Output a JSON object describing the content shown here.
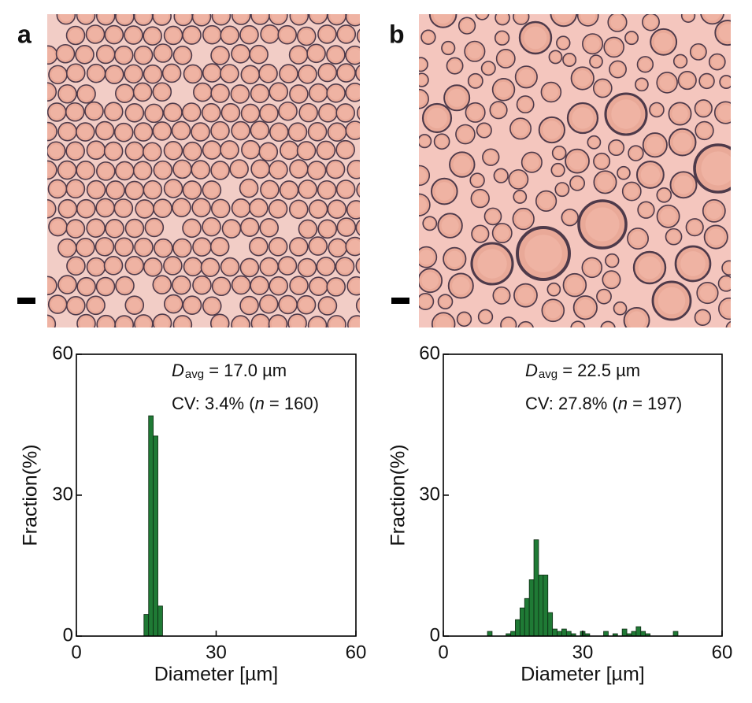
{
  "panel_labels": [
    "a",
    "b"
  ],
  "chart_data": [
    {
      "type": "histogram",
      "bins": [
        14.5,
        15.5,
        16.5,
        17.5,
        18.5
      ],
      "values": [
        4.6,
        46.9,
        42.6,
        6.4
      ],
      "color": "#1f7a35",
      "xlabel": "Diameter [µm]",
      "ylabel": "Fraction(%)",
      "xlim": [
        0,
        60
      ],
      "ylim": [
        0,
        60
      ],
      "xticks": [
        0,
        30,
        60
      ],
      "yticks": [
        0,
        30,
        60
      ],
      "annotations": [
        [
          {
            "text": "D",
            "style": "italic"
          },
          {
            "text": "avg",
            "style": "sub"
          },
          {
            "text": " = 17.0 µm"
          }
        ],
        [
          {
            "text": "CV: 3.4% ("
          },
          {
            "text": "n",
            "style": "italic"
          },
          {
            "text": " = 160)"
          }
        ]
      ]
    },
    {
      "type": "histogram",
      "bins": [
        9.5,
        10.5,
        11.5,
        12.5,
        13.5,
        14.5,
        15.5,
        16.5,
        17.5,
        18.5,
        19.5,
        20.5,
        21.5,
        22.5,
        23.5,
        24.5,
        25.5,
        26.5,
        27.5,
        28.5,
        29.5,
        30.5,
        31.5,
        32.5,
        33.5,
        34.5,
        35.5,
        36.5,
        37.5,
        38.5,
        39.5,
        40.5,
        41.5,
        42.5,
        43.5,
        44.5,
        45.5,
        46.5,
        47.5,
        48.5,
        49.5,
        50.5
      ],
      "values": [
        1,
        0,
        0,
        0,
        0.5,
        1,
        3.5,
        6,
        8,
        12,
        20.5,
        13,
        13,
        5,
        1.5,
        1,
        1.5,
        1,
        0.5,
        0,
        1,
        0.5,
        0,
        0,
        0,
        1,
        0,
        0.5,
        0,
        1.5,
        0.5,
        1,
        2,
        1,
        0.5,
        0,
        0,
        0,
        0,
        0,
        1
      ],
      "color": "#1f7a35",
      "xlabel": "Diameter [µm]",
      "ylabel": "Fraction(%)",
      "xlim": [
        0,
        60
      ],
      "ylim": [
        0,
        60
      ],
      "xticks": [
        0,
        30,
        60
      ],
      "yticks": [
        0,
        30,
        60
      ],
      "annotations": [
        [
          {
            "text": "D",
            "style": "italic"
          },
          {
            "text": "avg",
            "style": "sub"
          },
          {
            "text": " = 22.5 µm"
          }
        ],
        [
          {
            "text": "CV: 27.8% ("
          },
          {
            "text": "n",
            "style": "italic"
          },
          {
            "text": " = 197)"
          }
        ]
      ]
    }
  ]
}
